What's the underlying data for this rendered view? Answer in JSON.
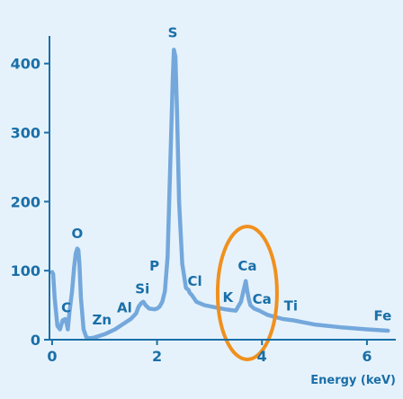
{
  "chart_data": {
    "type": "line",
    "title": "",
    "xlabel": "Energy (keV)",
    "ylabel": "",
    "xlim": [
      -0.05,
      6.55
    ],
    "ylim": [
      0,
      440
    ],
    "x_ticks": [
      "0",
      "2",
      "4",
      "6"
    ],
    "x_tick_values": [
      0,
      2,
      4,
      6
    ],
    "y_ticks": [
      "0",
      "100",
      "200",
      "300",
      "400"
    ],
    "y_tick_values": [
      0,
      100,
      200,
      300,
      400
    ],
    "grid": false,
    "series": [
      {
        "name": "",
        "x": [
          0,
          0.02,
          0.05,
          0.1,
          0.15,
          0.2,
          0.25,
          0.28,
          0.3,
          0.33,
          0.38,
          0.42,
          0.45,
          0.48,
          0.5,
          0.52,
          0.55,
          0.6,
          0.65,
          0.7,
          0.8,
          1.0,
          1.2,
          1.4,
          1.5,
          1.6,
          1.65,
          1.7,
          1.74,
          1.78,
          1.85,
          1.95,
          2.0,
          2.05,
          2.1,
          2.15,
          2.2,
          2.25,
          2.3,
          2.32,
          2.35,
          2.38,
          2.42,
          2.48,
          2.55,
          2.6,
          2.62,
          2.66,
          2.75,
          2.9,
          3.1,
          3.3,
          3.4,
          3.5,
          3.6,
          3.66,
          3.69,
          3.72,
          3.75,
          3.78,
          3.85,
          3.95,
          4.0,
          4.05,
          4.1,
          4.2,
          4.4,
          4.6,
          4.8,
          5.0,
          5.5,
          6.0,
          6.4
        ],
        "y": [
          98,
          95,
          60,
          20,
          15,
          28,
          30,
          22,
          15,
          40,
          70,
          105,
          125,
          132,
          130,
          110,
          60,
          15,
          4,
          2,
          3,
          8,
          15,
          25,
          30,
          38,
          48,
          53,
          55,
          50,
          45,
          44,
          45,
          48,
          55,
          70,
          120,
          250,
          380,
          420,
          410,
          330,
          200,
          110,
          75,
          72,
          68,
          65,
          55,
          50,
          47,
          44,
          43,
          42,
          55,
          75,
          85,
          70,
          58,
          50,
          45,
          42,
          40,
          38,
          36,
          34,
          30,
          28,
          25,
          22,
          18,
          15,
          13
        ]
      }
    ],
    "peak_labels": [
      {
        "text": "C",
        "x": 0.27,
        "y": 40
      },
      {
        "text": "O",
        "x": 0.48,
        "y": 147
      },
      {
        "text": "Zn",
        "x": 0.95,
        "y": 22
      },
      {
        "text": "Al",
        "x": 1.38,
        "y": 40
      },
      {
        "text": "Si",
        "x": 1.72,
        "y": 67
      },
      {
        "text": "P",
        "x": 1.95,
        "y": 100
      },
      {
        "text": "S",
        "x": 2.3,
        "y": 438
      },
      {
        "text": "Cl",
        "x": 2.72,
        "y": 78
      },
      {
        "text": "K",
        "x": 3.35,
        "y": 55
      },
      {
        "text": "Ca",
        "x": 3.72,
        "y": 100
      },
      {
        "text": "Ca",
        "x": 4.0,
        "y": 52
      },
      {
        "text": "Ti",
        "x": 4.55,
        "y": 42
      },
      {
        "text": "Fe",
        "x": 6.3,
        "y": 28
      }
    ],
    "highlight": {
      "shape": "ellipse",
      "around_label": "Ca",
      "color": "#f0901e"
    },
    "colors": {
      "line": "#74a8dc",
      "text": "#1a6fa8",
      "axis": "#1a6fa8",
      "highlight": "#f0901e",
      "background": "#e6f2fb"
    }
  }
}
